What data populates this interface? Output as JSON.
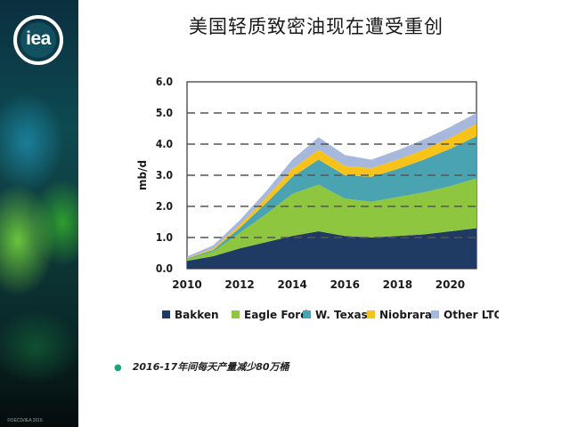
{
  "slide": {
    "title": "美国轻质致密油现在遭受重创",
    "logo_text": "iea",
    "copyright": "©OECD/IEA 2016",
    "bullet": "2016-17年间每天产量减少80万桶",
    "accent": "#1aa37a"
  },
  "chart_data": {
    "type": "area",
    "stacked": true,
    "title": "",
    "xlabel": "",
    "ylabel": "mb/d",
    "ylim": [
      0,
      6
    ],
    "xlim": [
      2010,
      2021
    ],
    "y_ticks": [
      "0.0",
      "1.0",
      "2.0",
      "3.0",
      "4.0",
      "5.0",
      "6.0"
    ],
    "x_ticks": [
      "2010",
      "2012",
      "2014",
      "2016",
      "2018",
      "2020"
    ],
    "grid": "dashed horizontal",
    "legend_position": "bottom",
    "x": [
      2010,
      2011,
      2012,
      2013,
      2014,
      2015,
      2016,
      2017,
      2018,
      2019,
      2020,
      2021
    ],
    "series": [
      {
        "name": "Bakken",
        "color": "#1f3b63",
        "values": [
          0.25,
          0.4,
          0.65,
          0.85,
          1.05,
          1.2,
          1.05,
          1.0,
          1.05,
          1.1,
          1.2,
          1.3
        ]
      },
      {
        "name": "Eagle Ford",
        "color": "#8ec63f",
        "values": [
          0.05,
          0.15,
          0.5,
          0.9,
          1.35,
          1.5,
          1.2,
          1.15,
          1.25,
          1.35,
          1.45,
          1.6
        ]
      },
      {
        "name": "W. Texas",
        "color": "#4aa3b0",
        "values": [
          0.02,
          0.05,
          0.15,
          0.35,
          0.55,
          0.8,
          0.75,
          0.8,
          0.9,
          1.05,
          1.2,
          1.35
        ]
      },
      {
        "name": "Niobrara",
        "color": "#f7c31a",
        "values": [
          0.02,
          0.05,
          0.1,
          0.18,
          0.25,
          0.32,
          0.3,
          0.28,
          0.3,
          0.32,
          0.35,
          0.4
        ]
      },
      {
        "name": "Other LTO",
        "color": "#a6b8dc",
        "values": [
          0.05,
          0.1,
          0.15,
          0.2,
          0.3,
          0.4,
          0.35,
          0.27,
          0.3,
          0.33,
          0.35,
          0.35
        ]
      }
    ]
  }
}
